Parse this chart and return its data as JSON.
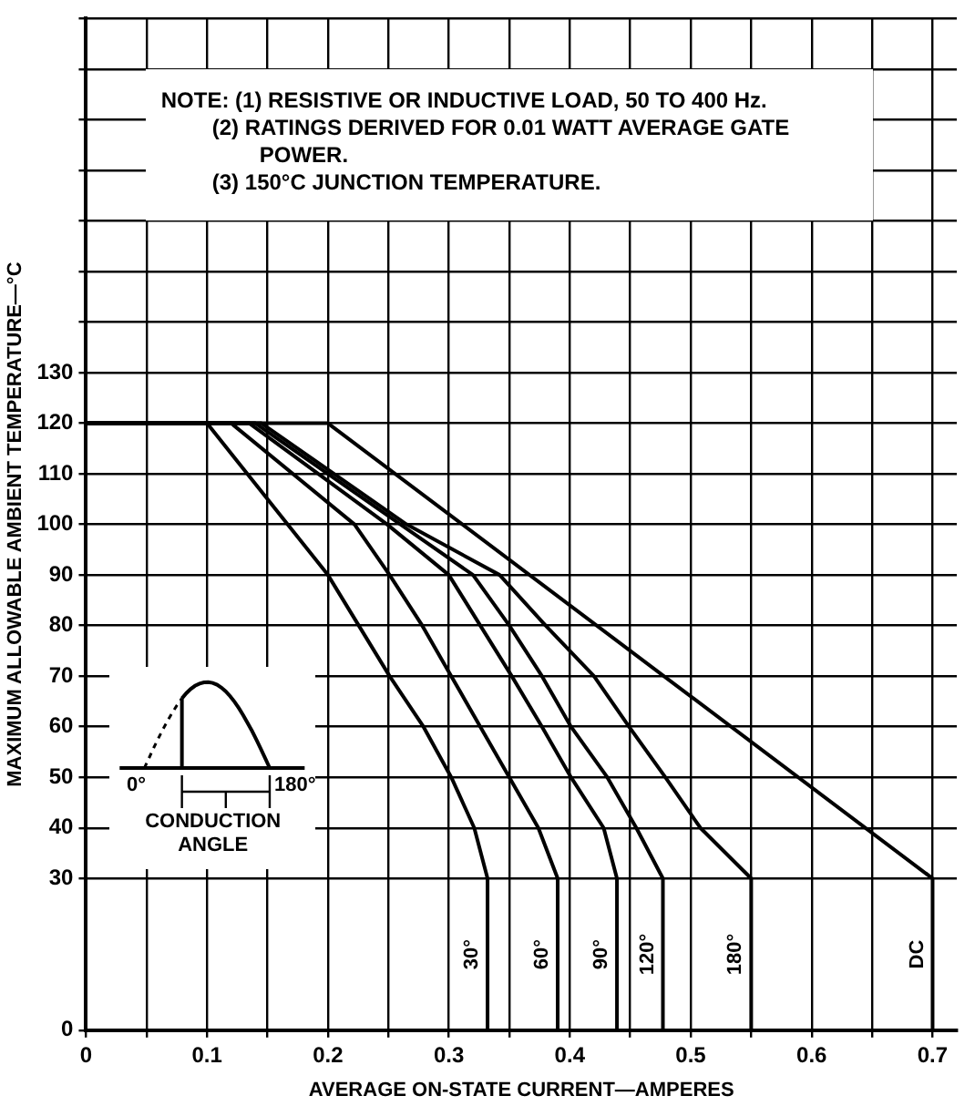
{
  "chart_data": {
    "type": "line",
    "xlabel": "AVERAGE ON-STATE CURRENT—AMPERES",
    "ylabel": "MAXIMUM ALLOWABLE AMBIENT TEMPERATURE—°C",
    "annotations": [
      "NOTE: (1) RESISTIVE OR INDUCTIVE LOAD, 50 TO 400 Hz.",
      "(2) RATINGS DERIVED FOR 0.01 WATT AVERAGE GATE POWER.",
      "(3) 150°C JUNCTION TEMPERATURE.",
      "0°",
      "180°",
      "CONDUCTION ANGLE"
    ],
    "series": [
      {
        "name": "30°",
        "color": "#000000",
        "x": [
          0,
          0.1,
          0.2,
          0.251,
          0.279,
          0.302,
          0.321,
          0.332,
          0.332
        ],
        "values": [
          120,
          120,
          90,
          70,
          60,
          50,
          40,
          30,
          0
        ]
      },
      {
        "name": "60°",
        "color": "#000000",
        "x": [
          0,
          0.12,
          0.222,
          0.251,
          0.278,
          0.302,
          0.326,
          0.35,
          0.374,
          0.39,
          0.39
        ],
        "values": [
          120,
          120,
          100,
          90,
          80,
          70,
          60,
          50,
          40,
          30,
          0
        ]
      },
      {
        "name": "90°",
        "color": "#000000",
        "x": [
          0,
          0.135,
          0.249,
          0.3,
          0.326,
          0.352,
          0.377,
          0.401,
          0.428,
          0.439,
          0.439
        ],
        "values": [
          120,
          120,
          100,
          90,
          80,
          70,
          60,
          50,
          40,
          30,
          0
        ]
      },
      {
        "name": "120°",
        "color": "#000000",
        "x": [
          0,
          0.14,
          0.26,
          0.32,
          0.35,
          0.377,
          0.401,
          0.431,
          0.455,
          0.477,
          0.477
        ],
        "values": [
          120,
          120,
          100,
          90,
          80,
          70,
          60,
          50,
          40,
          30,
          0
        ]
      },
      {
        "name": "180°",
        "color": "#000000",
        "x": [
          0,
          0.145,
          0.265,
          0.342,
          0.38,
          0.42,
          0.449,
          0.479,
          0.508,
          0.55,
          0.55
        ],
        "values": [
          120,
          120,
          100,
          90,
          80,
          70,
          60,
          50,
          40,
          30,
          0
        ]
      },
      {
        "name": "DC",
        "color": "#000000",
        "x": [
          0,
          0.2,
          0.7,
          0.7
        ],
        "values": [
          120,
          120,
          30,
          0
        ]
      }
    ],
    "xlim": [
      0,
      0.72
    ],
    "xticks": [
      0,
      {
        "value": 0.05,
        "label": null
      },
      0.1,
      {
        "value": 0.15,
        "label": null
      },
      0.2,
      {
        "value": 0.25,
        "label": null
      },
      0.3,
      {
        "value": 0.35,
        "label": null
      },
      0.4,
      {
        "value": 0.45,
        "label": null
      },
      0.5,
      {
        "value": 0.55,
        "label": null
      },
      0.6,
      {
        "value": 0.65,
        "label": null
      },
      0.7
    ],
    "ylim": [
      0,
      200
    ],
    "yticks": [
      0,
      30,
      40,
      50,
      60,
      70,
      80,
      90,
      100,
      110,
      120,
      130,
      {
        "value": 140,
        "label": null
      },
      {
        "value": 150,
        "label": null
      },
      {
        "value": 160,
        "label": null
      },
      {
        "value": 170,
        "label": null
      },
      {
        "value": 180,
        "label": null
      },
      {
        "value": 190,
        "label": null
      },
      {
        "value": 200,
        "label": null
      }
    ],
    "grid": true,
    "legend": false,
    "marker": "none",
    "line_style": "solid"
  }
}
